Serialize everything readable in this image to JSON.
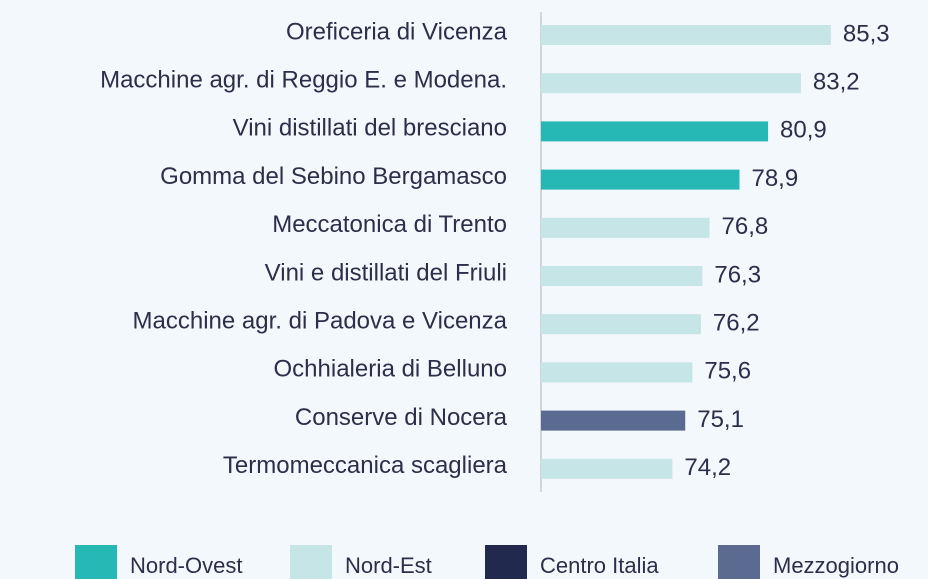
{
  "chart_data": {
    "type": "barh",
    "categories": [
      "Oreficeria di Vicenza",
      "Macchine agr. di Reggio E. e Modena.",
      "Vini distillati del bresciano",
      "Gomma del Sebino Bergamasco",
      "Meccatonica di Trento",
      "Vini e distillati del Friuli",
      "Macchine agr. di Padova e Vicenza",
      "Ochhialeria di Belluno",
      "Conserve di Nocera",
      "Termomeccanica scagliera"
    ],
    "series": [
      {
        "name": "Nord-Ovest",
        "color": "#26b8b5",
        "values": [
          null,
          null,
          80.9,
          78.9,
          null,
          null,
          null,
          null,
          null,
          null
        ],
        "value_labels": [
          null,
          null,
          "80,9",
          "78,9",
          null,
          null,
          null,
          null,
          null,
          null
        ]
      },
      {
        "name": "Nord-Est",
        "color": "#c5e5e6",
        "values": [
          85.3,
          83.2,
          null,
          null,
          76.8,
          76.3,
          76.2,
          75.6,
          null,
          74.2
        ],
        "value_labels": [
          "85,3",
          "83,2",
          null,
          null,
          "76,8",
          "76,3",
          "76,2",
          "75,6",
          null,
          "74,2"
        ]
      },
      {
        "name": "Centro Italia",
        "color": "#22294f",
        "values": [
          null,
          null,
          null,
          null,
          null,
          null,
          null,
          null,
          null,
          null
        ],
        "value_labels": [
          null,
          null,
          null,
          null,
          null,
          null,
          null,
          null,
          null,
          null
        ]
      },
      {
        "name": "Mezzogiorno",
        "color": "#5a6a90",
        "values": [
          null,
          null,
          null,
          null,
          null,
          null,
          null,
          null,
          75.1,
          null
        ],
        "value_labels": [
          null,
          null,
          null,
          null,
          null,
          null,
          null,
          null,
          "75,1",
          null
        ]
      }
    ],
    "xlim": [
      65,
      90
    ]
  }
}
